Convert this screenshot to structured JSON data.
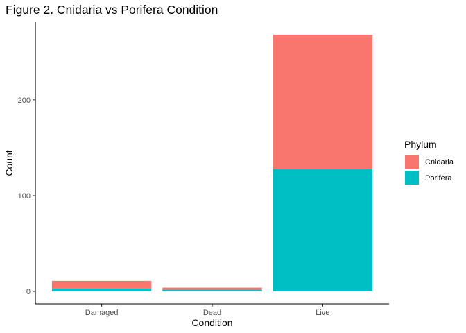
{
  "chart_data": {
    "type": "bar",
    "stacked": true,
    "title": "Figure 2. Cnidaria vs Porifera Condition",
    "xlabel": "Condition",
    "ylabel": "Count",
    "categories": [
      "Damaged",
      "Dead",
      "Live"
    ],
    "series": [
      {
        "name": "Cnidaria",
        "color": "#F8766D",
        "values": [
          8,
          2,
          140
        ]
      },
      {
        "name": "Porifera",
        "color": "#00BFC4",
        "values": [
          3,
          2,
          128
        ]
      }
    ],
    "y_ticks": [
      0,
      100,
      200
    ],
    "ylim": [
      -13,
      281
    ],
    "grid": false,
    "legend": {
      "title": "Phylum",
      "placement": "right",
      "entries": [
        "Cnidaria",
        "Porifera"
      ]
    }
  }
}
